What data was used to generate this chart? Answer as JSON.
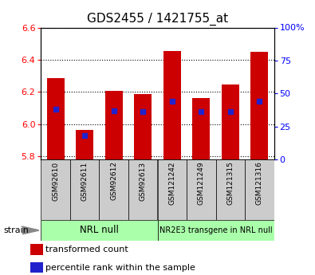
{
  "title": "GDS2455 / 1421755_at",
  "samples": [
    "GSM92610",
    "GSM92611",
    "GSM92612",
    "GSM92613",
    "GSM121242",
    "GSM121249",
    "GSM121315",
    "GSM121316"
  ],
  "transformed_counts": [
    6.285,
    5.963,
    6.205,
    6.185,
    6.455,
    6.16,
    6.245,
    6.448
  ],
  "percentile_ranks": [
    38,
    18,
    37,
    36,
    44,
    36,
    36,
    44
  ],
  "ylim_left": [
    5.78,
    6.6
  ],
  "ylim_right": [
    0,
    100
  ],
  "yticks_left": [
    5.8,
    6.0,
    6.2,
    6.4,
    6.6
  ],
  "yticks_right": [
    0,
    25,
    50,
    75,
    100
  ],
  "ytick_labels_right": [
    "0",
    "25",
    "50",
    "75",
    "100%"
  ],
  "bar_bottom": 5.78,
  "bar_color": "#cc0000",
  "dot_color": "#2222cc",
  "group1_label": "NRL null",
  "group2_label": "NR2E3 transgene in NRL null",
  "group_bg_color": "#aaffaa",
  "strain_label": "strain",
  "legend_items": [
    "transformed count",
    "percentile rank within the sample"
  ],
  "bar_width": 0.6,
  "x_bg_color": "#cccccc",
  "title_fontsize": 11
}
